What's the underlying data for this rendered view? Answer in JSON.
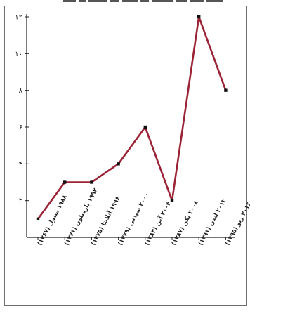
{
  "chart_data": {
    "type": "line",
    "title": "",
    "xlabel": "",
    "ylabel": "",
    "categories": [
      "۱۹۸۸ سئول (۱۳۶۷)",
      "۱۹۹۲ بارسلون (۱۳۷۱)",
      "۱۹۹۶ آتلانتا (۱۳۷۵)",
      "۲۰۰۰ سیدنی (۱۳۷۹)",
      "۲۰۰۴ آتن (۱۳۸۳)",
      "۲۰۰۸ پکن (۱۳۸۷)",
      "۲۰۱۲ لندن (۱۳۹۱)",
      "۲۰۱۶ ریو (۱۳۹۵)"
    ],
    "series": [
      {
        "values": [
          1,
          3,
          3,
          4,
          6,
          2,
          12,
          8
        ]
      }
    ],
    "yticks": [
      {
        "value": 2,
        "label": "۲"
      },
      {
        "value": 4,
        "label": "۴"
      },
      {
        "value": 6,
        "label": "۶"
      },
      {
        "value": 8,
        "label": "۸"
      },
      {
        "value": 10,
        "label": "۱۰"
      },
      {
        "value": 12,
        "label": "۱۲"
      }
    ],
    "ylim": [
      0,
      12
    ],
    "grid": false,
    "colors": {
      "line": "#9b2335",
      "marker": "#111111",
      "axis": "#222222"
    }
  }
}
